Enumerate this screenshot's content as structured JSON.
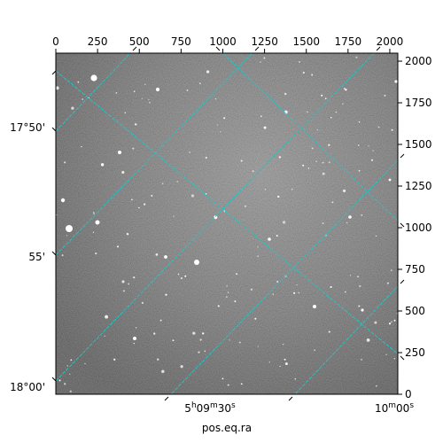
{
  "chart_data": {
    "type": "heatmap",
    "image_kind": "astronomical grayscale image with WCS coordinate grid overlay",
    "x_pixel_axis": {
      "ticks": [
        0,
        250,
        500,
        750,
        1000,
        1250,
        1500,
        1750,
        2000
      ],
      "range": [
        0,
        2048
      ]
    },
    "y_pixel_axis": {
      "ticks": [
        0,
        250,
        500,
        750,
        1000,
        1250,
        1500,
        1750,
        2000
      ],
      "range": [
        0,
        2048
      ]
    },
    "dec_ticks": [
      {
        "label": "17°50'",
        "value": 17.8333
      },
      {
        "label": "55'",
        "value": 17.9167
      },
      {
        "label": "18°00'",
        "value": 18.0
      }
    ],
    "ra_ticks": [
      {
        "label": "5h09m30s",
        "hms": [
          "5",
          "h",
          "09",
          "m",
          "30",
          "s"
        ]
      },
      {
        "label": "10m00s",
        "hms": [
          "10",
          "m",
          "00",
          "s"
        ]
      }
    ],
    "xlabel": "pos.eq.ra",
    "ylabel": "",
    "colormap": "gray",
    "grid": true,
    "grid_color": "#20c5c5",
    "grid_style": "dashed"
  }
}
